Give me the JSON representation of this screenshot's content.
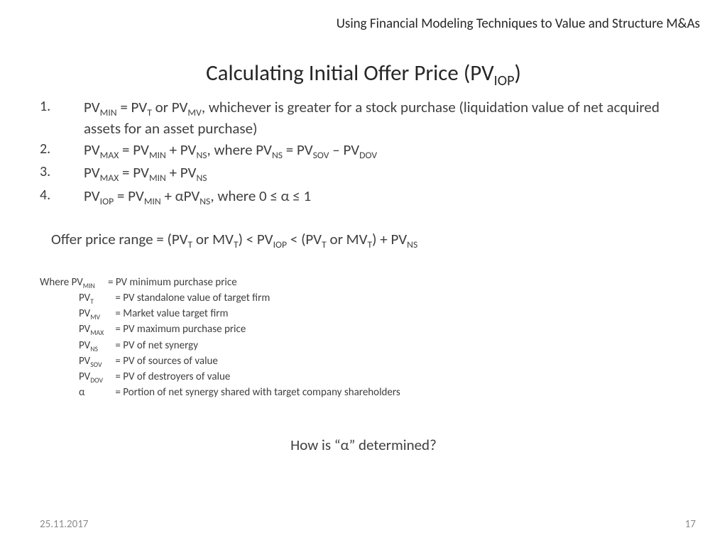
{
  "header": {
    "kicker": "Using Financial Modeling Techniques to Value and Structure M&As"
  },
  "title": {
    "pre": "Calculating Initial Offer Price (PV",
    "sub": "IOP",
    "post": ")"
  },
  "items": [
    {
      "num": "1.",
      "html": "PV<sub>MIN</sub> = PV<sub>T</sub> or PV<sub>MV</sub>, whichever is greater for a stock purchase (liquidation value of net acquired assets for an asset purchase)"
    },
    {
      "num": "2.",
      "html": "PV<sub>MAX</sub> = PV<sub>MIN</sub> + PV<sub>NS</sub>, where PV<sub>NS</sub> = PV<sub>SOV</sub> – PV<sub>DOV</sub>"
    },
    {
      "num": "3.",
      "html": "PV<sub>MAX</sub> = PV<sub>MIN</sub> + PV<sub>NS</sub>"
    },
    {
      "num": "4.",
      "html": "PV<sub>IOP</sub> = PV<sub>MIN</sub> + αPV<sub>NS</sub>, where 0 ≤ α ≤ 1"
    }
  ],
  "range_html": "Offer price range = (PV<sub>T</sub> or MV<sub>T</sub>) < PV<sub>IOP</sub> < (PV<sub>T</sub> or MV<sub>T</sub>) + PV<sub>NS</sub>",
  "defs": {
    "lead": "Where ",
    "rows": [
      {
        "term_html": "PV<sub>MIN</sub>",
        "desc": "= PV minimum purchase price"
      },
      {
        "term_html": "PV<sub>T</sub>",
        "desc": "= PV standalone value of target firm"
      },
      {
        "term_html": "PV<sub>MV</sub>",
        "desc": "= Market value target firm"
      },
      {
        "term_html": "PV<sub>MAX</sub>",
        "desc": "= PV maximum purchase price"
      },
      {
        "term_html": "PV<sub>NS</sub>",
        "desc": "= PV  of net synergy"
      },
      {
        "term_html": "PV<sub>SOV</sub>",
        "desc": "= PV of sources of value"
      },
      {
        "term_html": "PV<sub>DOV</sub>",
        "desc": "= PV of destroyers of value"
      },
      {
        "term_html": "α",
        "desc": "= Portion of net synergy shared with target company shareholders"
      }
    ]
  },
  "question": "How is “α” determined?",
  "footer": {
    "date": "25.11.2017",
    "page": "17"
  }
}
